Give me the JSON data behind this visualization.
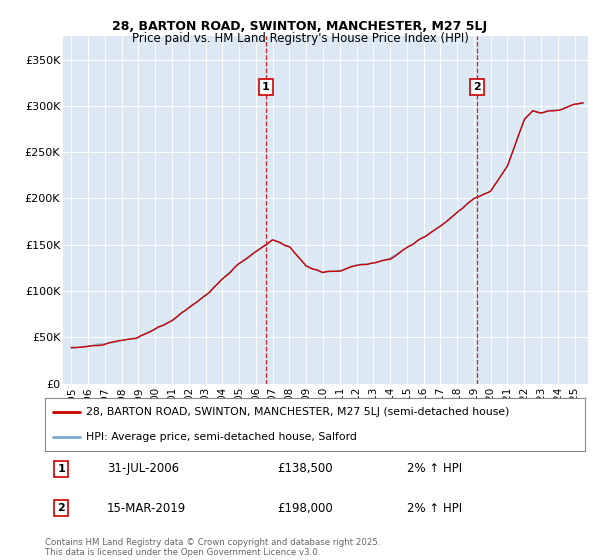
{
  "title_line1": "28, BARTON ROAD, SWINTON, MANCHESTER, M27 5LJ",
  "title_line2": "Price paid vs. HM Land Registry's House Price Index (HPI)",
  "bg_color": "#dce9f5",
  "ylabel_ticks": [
    "£0",
    "£50K",
    "£100K",
    "£150K",
    "£200K",
    "£250K",
    "£300K",
    "£350K"
  ],
  "ytick_vals": [
    0,
    50000,
    100000,
    150000,
    200000,
    250000,
    300000,
    350000
  ],
  "ylim": [
    0,
    375000
  ],
  "xlim_start": 1994.5,
  "xlim_end": 2025.8,
  "xtick_years": [
    1995,
    1996,
    1997,
    1998,
    1999,
    2000,
    2001,
    2002,
    2003,
    2004,
    2005,
    2006,
    2007,
    2008,
    2009,
    2010,
    2011,
    2012,
    2013,
    2014,
    2015,
    2016,
    2017,
    2018,
    2019,
    2020,
    2021,
    2022,
    2023,
    2024,
    2025
  ],
  "legend_line1": "28, BARTON ROAD, SWINTON, MANCHESTER, M27 5LJ (semi-detached house)",
  "legend_line2": "HPI: Average price, semi-detached house, Salford",
  "marker1_x": 2006.58,
  "marker1_y": 138500,
  "marker1_label": "1",
  "marker1_date": "31-JUL-2006",
  "marker1_price": "£138,500",
  "marker1_hpi": "2% ↑ HPI",
  "marker2_x": 2019.21,
  "marker2_y": 198000,
  "marker2_label": "2",
  "marker2_date": "15-MAR-2019",
  "marker2_price": "£198,000",
  "marker2_hpi": "2% ↑ HPI",
  "footer": "Contains HM Land Registry data © Crown copyright and database right 2025.\nThis data is licensed under the Open Government Licence v3.0.",
  "line_color_red": "#cc0000",
  "line_color_blue": "#7aabcf",
  "dashed_line_color": "#cc0000"
}
